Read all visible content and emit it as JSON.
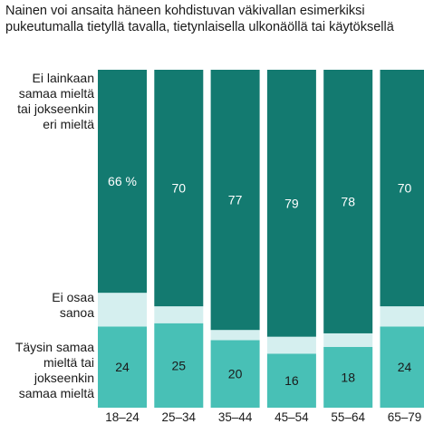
{
  "chart_data": {
    "type": "bar",
    "stacked": true,
    "normalized": true,
    "title": "Nainen voi ansaita häneen kohdistuvan väkivallan esimerkiksi pukeutumalla tietyllä tavalla, tietynlaisella ulkonäöllä tai käytöksellä",
    "categories": [
      "18–24",
      "25–34",
      "35–44",
      "45–54",
      "55–64",
      "65–79"
    ],
    "series": [
      {
        "name": "Täysin samaa mieltä tai jokseenkin samaa mieltä",
        "values": [
          24,
          25,
          20,
          16,
          18,
          24
        ],
        "labels": [
          "24",
          "25",
          "20",
          "16",
          "18",
          "24"
        ],
        "color": "#48c0b6"
      },
      {
        "name": "Ei osaa sanoa",
        "values": [
          10,
          5,
          3,
          5,
          4,
          6
        ],
        "labels": [
          "",
          "",
          "",
          "",
          "",
          ""
        ],
        "color": "#d5efef"
      },
      {
        "name": "Ei lainkaan samaa mieltä tai jokseenkin eri mieltä",
        "values": [
          66,
          70,
          77,
          79,
          78,
          70
        ],
        "labels": [
          "66 %",
          "70",
          "77",
          "79",
          "78",
          "70"
        ],
        "color": "#137a70"
      }
    ],
    "ylim": [
      0,
      100
    ],
    "legend": "left"
  }
}
